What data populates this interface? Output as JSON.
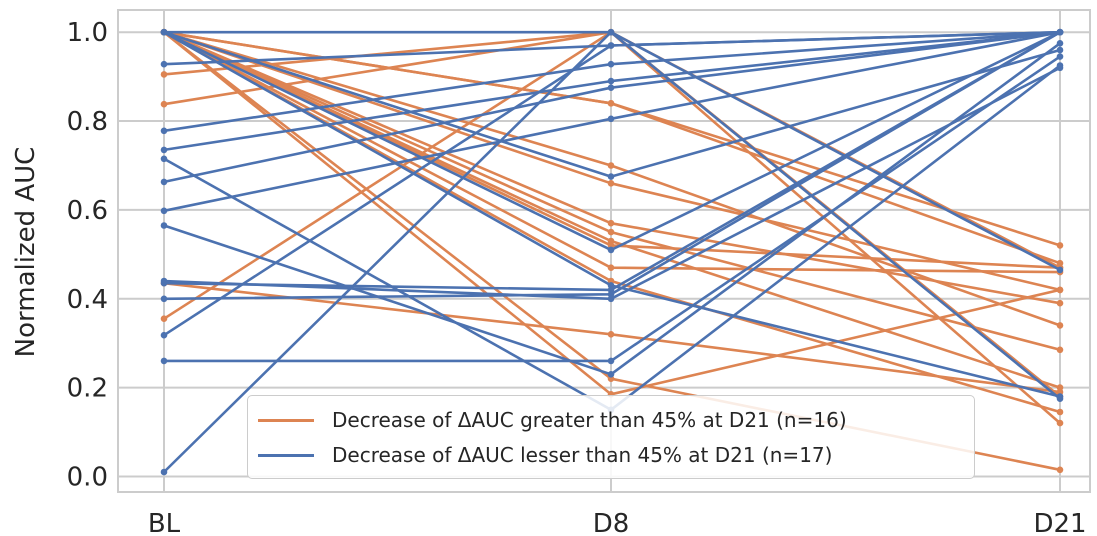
{
  "chart_data": {
    "type": "line",
    "categories": [
      "BL",
      "D8",
      "D21"
    ],
    "ylabel": "Normalized AUC",
    "xlabel": "",
    "ylim": [
      -0.035,
      1.05
    ],
    "yticks": [
      "0.0",
      "0.2",
      "0.4",
      "0.6",
      "0.8",
      "1.0"
    ],
    "ytick_values": [
      0.0,
      0.2,
      0.4,
      0.6,
      0.8,
      1.0
    ],
    "grid": true,
    "legend_position": "lower-center",
    "series": [
      {
        "name": "Decrease of ΔAUC greater than 45% at D21 (n=16)",
        "color": "#dd8452",
        "lines": [
          [
            1.0,
            0.84,
            0.52
          ],
          [
            1.0,
            0.84,
            0.48
          ],
          [
            1.0,
            0.66,
            0.42
          ],
          [
            1.0,
            0.57,
            0.39
          ],
          [
            1.0,
            0.55,
            0.285
          ],
          [
            1.0,
            0.53,
            0.2
          ],
          [
            1.0,
            0.47,
            0.46
          ],
          [
            1.0,
            0.44,
            0.145
          ],
          [
            1.0,
            0.7,
            0.34
          ],
          [
            0.905,
            1.0,
            0.47
          ],
          [
            0.838,
            1.0,
            0.18
          ],
          [
            0.355,
            1.0,
            0.12
          ],
          [
            0.435,
            0.32,
            0.19
          ],
          [
            1.0,
            0.52,
            0.47
          ],
          [
            1.0,
            0.22,
            0.015
          ],
          [
            1.0,
            0.185,
            0.42
          ]
        ]
      },
      {
        "name": "Decrease of ΔAUC lesser than 45% at D21 (n=17)",
        "color": "#4c72b0",
        "lines": [
          [
            0.01,
            1.0,
            0.465
          ],
          [
            0.26,
            0.26,
            0.945
          ],
          [
            0.318,
            0.97,
            1.0
          ],
          [
            0.4,
            0.41,
            1.0
          ],
          [
            0.435,
            0.42,
            1.0
          ],
          [
            0.44,
            0.4,
            0.92
          ],
          [
            0.565,
            0.23,
            0.975
          ],
          [
            0.598,
            0.805,
            1.0
          ],
          [
            0.663,
            0.875,
            1.0
          ],
          [
            0.735,
            0.89,
            1.0
          ],
          [
            0.778,
            0.928,
            1.0
          ],
          [
            0.928,
            0.97,
            1.0
          ],
          [
            0.715,
            0.15,
            0.925
          ],
          [
            1.0,
            0.675,
            0.96
          ],
          [
            1.0,
            0.51,
            1.0
          ],
          [
            1.0,
            0.43,
            0.18
          ],
          [
            1.0,
            1.0,
            0.175
          ]
        ]
      }
    ]
  }
}
